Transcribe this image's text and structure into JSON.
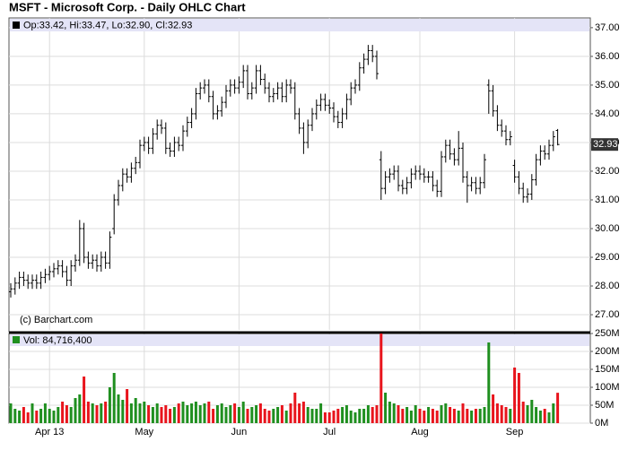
{
  "chart_data": {
    "type": "ohlc",
    "title": "MSFT - Microsoft Corp. - Daily OHLC Chart",
    "legend": "Op:33.42, Hi:33.47, Lo:32.90, Cl:32.93",
    "last_label": "32.93",
    "credit": "(c) Barchart.com",
    "color": "#000000",
    "grid": true,
    "categories": [
      null,
      null,
      null,
      null,
      null,
      null,
      null,
      null,
      null,
      "Apr 13",
      null,
      null,
      null,
      null,
      null,
      null,
      null,
      null,
      null,
      null,
      null,
      null,
      null,
      null,
      null,
      null,
      null,
      null,
      null,
      null,
      null,
      "May",
      null,
      null,
      null,
      null,
      null,
      null,
      null,
      null,
      null,
      null,
      null,
      null,
      null,
      null,
      null,
      null,
      null,
      null,
      null,
      null,
      null,
      "Jun",
      null,
      null,
      null,
      null,
      null,
      null,
      null,
      null,
      null,
      null,
      null,
      null,
      null,
      null,
      null,
      null,
      null,
      null,
      null,
      null,
      "Jul",
      null,
      null,
      null,
      null,
      null,
      null,
      null,
      null,
      null,
      null,
      null,
      null,
      null,
      null,
      null,
      null,
      null,
      null,
      null,
      null,
      "Aug",
      null,
      null,
      null,
      null,
      null,
      null,
      null,
      null,
      null,
      null,
      null,
      null,
      null,
      null,
      null,
      null,
      null,
      null,
      null,
      null,
      null,
      "Sep",
      null,
      null,
      null,
      null,
      null,
      null,
      null,
      null,
      null,
      null
    ],
    "open": [
      27.8,
      27.9,
      28.1,
      28.3,
      28.2,
      28.1,
      28.2,
      28.1,
      28.3,
      28.4,
      28.5,
      28.6,
      28.7,
      28.5,
      28.2,
      28.7,
      28.9,
      30.0,
      29.0,
      28.8,
      28.9,
      28.7,
      29.0,
      28.8,
      30.0,
      31.0,
      31.5,
      31.9,
      31.8,
      32.1,
      32.3,
      32.9,
      33.0,
      32.8,
      33.3,
      33.6,
      33.5,
      32.8,
      32.7,
      33.0,
      32.9,
      33.4,
      33.7,
      34.0,
      34.7,
      34.9,
      35.0,
      34.6,
      34.0,
      34.1,
      34.4,
      34.8,
      35.0,
      34.9,
      35.1,
      35.5,
      34.7,
      34.9,
      35.5,
      35.2,
      34.9,
      34.6,
      34.7,
      34.9,
      34.6,
      35.0,
      34.9,
      34.0,
      33.5,
      33.0,
      33.6,
      34.0,
      34.3,
      34.5,
      34.3,
      34.2,
      33.9,
      33.7,
      34.0,
      34.5,
      34.9,
      35.0,
      35.6,
      35.9,
      36.2,
      36.0,
      32.4,
      31.4,
      31.8,
      31.9,
      32.0,
      31.5,
      31.4,
      31.6,
      31.9,
      32.0,
      31.9,
      31.8,
      31.8,
      31.5,
      31.3,
      32.5,
      32.9,
      32.6,
      32.4,
      32.8,
      31.8,
      31.5,
      31.6,
      31.4,
      31.6,
      35.0,
      34.8,
      34.1,
      33.6,
      33.4,
      33.1,
      32.2,
      31.8,
      31.4,
      31.1,
      31.2,
      31.7,
      32.4,
      32.7,
      32.6,
      32.9,
      33.42
    ],
    "high": [
      28.1,
      28.3,
      28.5,
      28.5,
      28.4,
      28.4,
      28.4,
      28.5,
      28.6,
      28.7,
      28.8,
      28.9,
      28.9,
      28.7,
      28.9,
      29.1,
      30.3,
      30.2,
      29.2,
      29.1,
      29.1,
      29.2,
      29.2,
      29.9,
      31.2,
      31.7,
      32.1,
      32.1,
      32.3,
      32.5,
      33.1,
      33.2,
      33.2,
      33.5,
      33.8,
      33.8,
      33.7,
      33.0,
      33.2,
      33.2,
      33.6,
      33.9,
      34.2,
      34.9,
      35.1,
      35.2,
      35.2,
      34.8,
      34.3,
      34.6,
      35.0,
      35.2,
      35.2,
      35.3,
      35.7,
      35.7,
      35.1,
      35.7,
      35.7,
      35.4,
      35.1,
      34.9,
      35.1,
      35.1,
      35.2,
      35.2,
      35.1,
      34.2,
      33.7,
      33.8,
      34.2,
      34.5,
      34.7,
      34.7,
      34.5,
      34.4,
      34.1,
      34.2,
      34.7,
      35.1,
      35.2,
      35.8,
      36.1,
      36.4,
      36.4,
      36.2,
      32.7,
      32.0,
      32.1,
      32.2,
      32.2,
      31.7,
      31.8,
      32.1,
      32.2,
      32.2,
      32.1,
      32.0,
      32.0,
      31.7,
      32.7,
      33.1,
      33.1,
      32.8,
      33.4,
      33.0,
      32.0,
      31.8,
      31.8,
      31.8,
      32.6,
      35.2,
      35.0,
      34.3,
      33.8,
      33.6,
      33.4,
      32.4,
      32.0,
      31.6,
      31.4,
      31.9,
      32.6,
      32.9,
      32.9,
      33.1,
      33.4,
      33.47
    ],
    "low": [
      27.6,
      27.7,
      27.9,
      28.0,
      27.9,
      27.9,
      27.9,
      27.9,
      28.1,
      28.2,
      28.3,
      28.4,
      28.3,
      28.0,
      28.0,
      28.5,
      28.7,
      28.8,
      28.6,
      28.6,
      28.5,
      28.5,
      28.6,
      28.6,
      29.8,
      30.8,
      31.3,
      31.6,
      31.6,
      31.9,
      32.1,
      32.7,
      32.6,
      32.6,
      33.1,
      33.3,
      32.6,
      32.5,
      32.5,
      32.7,
      32.7,
      33.2,
      33.5,
      33.8,
      34.5,
      34.7,
      34.4,
      33.8,
      33.8,
      33.9,
      34.2,
      34.6,
      34.7,
      34.7,
      34.9,
      34.5,
      34.5,
      34.7,
      35.0,
      34.7,
      34.4,
      34.4,
      34.5,
      34.4,
      34.4,
      34.7,
      33.8,
      33.3,
      32.6,
      32.8,
      33.4,
      33.8,
      34.1,
      34.1,
      34.0,
      33.7,
      33.5,
      33.5,
      33.8,
      34.3,
      34.7,
      34.8,
      35.4,
      35.7,
      35.8,
      35.2,
      31.0,
      31.2,
      31.6,
      31.7,
      31.3,
      31.2,
      31.2,
      31.4,
      31.7,
      31.7,
      31.6,
      31.6,
      31.3,
      31.1,
      31.1,
      32.3,
      32.4,
      32.2,
      32.2,
      31.6,
      30.9,
      31.3,
      31.2,
      31.2,
      31.4,
      34.0,
      33.9,
      33.4,
      33.2,
      32.9,
      32.9,
      31.6,
      31.2,
      30.9,
      30.9,
      31.0,
      31.5,
      32.2,
      32.4,
      32.4,
      32.7,
      32.9
    ],
    "close": [
      27.9,
      28.1,
      28.3,
      28.2,
      28.1,
      28.2,
      28.1,
      28.3,
      28.4,
      28.5,
      28.6,
      28.7,
      28.5,
      28.2,
      28.7,
      28.9,
      30.0,
      29.0,
      28.8,
      28.9,
      28.7,
      29.0,
      28.8,
      29.7,
      31.0,
      31.5,
      31.9,
      31.8,
      32.1,
      32.3,
      32.9,
      33.0,
      32.8,
      33.3,
      33.6,
      33.5,
      32.8,
      32.7,
      33.0,
      32.9,
      33.4,
      33.7,
      34.0,
      34.7,
      34.9,
      35.0,
      34.6,
      34.0,
      34.1,
      34.4,
      34.8,
      35.0,
      34.9,
      35.1,
      35.5,
      34.7,
      34.9,
      35.5,
      35.2,
      34.9,
      34.6,
      34.7,
      34.9,
      34.6,
      35.0,
      34.9,
      34.0,
      33.5,
      33.0,
      33.6,
      34.0,
      34.3,
      34.5,
      34.3,
      34.2,
      33.9,
      33.7,
      34.0,
      34.5,
      34.9,
      35.0,
      35.6,
      35.9,
      36.2,
      36.0,
      35.4,
      31.4,
      31.8,
      31.9,
      32.0,
      31.5,
      31.4,
      31.6,
      31.9,
      32.0,
      31.9,
      31.8,
      31.8,
      31.5,
      31.3,
      32.5,
      32.9,
      32.6,
      32.4,
      32.8,
      31.8,
      31.5,
      31.6,
      31.4,
      31.6,
      32.4,
      34.8,
      34.1,
      33.6,
      33.4,
      33.1,
      33.2,
      31.8,
      31.4,
      31.1,
      31.2,
      31.7,
      32.4,
      32.7,
      32.6,
      32.9,
      33.2,
      32.93
    ],
    "ylim": [
      26.47,
      37.34
    ],
    "yticks": [
      {
        "value": 27,
        "label": "27.00"
      },
      {
        "value": 28,
        "label": "28.00"
      },
      {
        "value": 29,
        "label": "29.00"
      },
      {
        "value": 30,
        "label": "30.00"
      },
      {
        "value": 31,
        "label": "31.00"
      },
      {
        "value": 32,
        "label": "32.00"
      },
      {
        "value": 33,
        "label": "33.00"
      },
      {
        "value": 34,
        "label": "34.00"
      },
      {
        "value": 35,
        "label": "35.00"
      },
      {
        "value": 36,
        "label": "36.00"
      },
      {
        "value": 37,
        "label": "37.00"
      }
    ],
    "volume": {
      "type": "bar",
      "legend": "Vol: 84,716,400",
      "up_color": "#1f8f1f",
      "down_color": "#e8141c",
      "values": [
        55,
        40,
        35,
        45,
        30,
        55,
        35,
        40,
        55,
        40,
        35,
        45,
        60,
        50,
        45,
        70,
        80,
        130,
        60,
        55,
        50,
        55,
        60,
        100,
        140,
        80,
        65,
        95,
        55,
        70,
        55,
        60,
        50,
        45,
        55,
        45,
        50,
        40,
        45,
        55,
        60,
        50,
        55,
        60,
        50,
        55,
        60,
        40,
        50,
        55,
        45,
        50,
        55,
        45,
        60,
        40,
        45,
        50,
        55,
        40,
        35,
        40,
        45,
        50,
        35,
        55,
        85,
        55,
        60,
        45,
        40,
        40,
        55,
        30,
        30,
        35,
        40,
        45,
        50,
        35,
        30,
        40,
        40,
        50,
        45,
        50,
        250,
        85,
        60,
        55,
        50,
        40,
        45,
        35,
        50,
        40,
        35,
        45,
        40,
        35,
        50,
        55,
        45,
        40,
        35,
        55,
        40,
        35,
        40,
        40,
        45,
        225,
        80,
        55,
        50,
        45,
        40,
        155,
        140,
        60,
        50,
        65,
        45,
        35,
        40,
        30,
        55,
        84.7164
      ],
      "ylim": [
        0,
        250
      ],
      "yticks": [
        {
          "value": 0,
          "label": "0M"
        },
        {
          "value": 50,
          "label": "50M"
        },
        {
          "value": 100,
          "label": "100M"
        },
        {
          "value": 150,
          "label": "150M"
        },
        {
          "value": 200,
          "label": "200M"
        },
        {
          "value": 250,
          "label": "250M"
        }
      ]
    }
  }
}
